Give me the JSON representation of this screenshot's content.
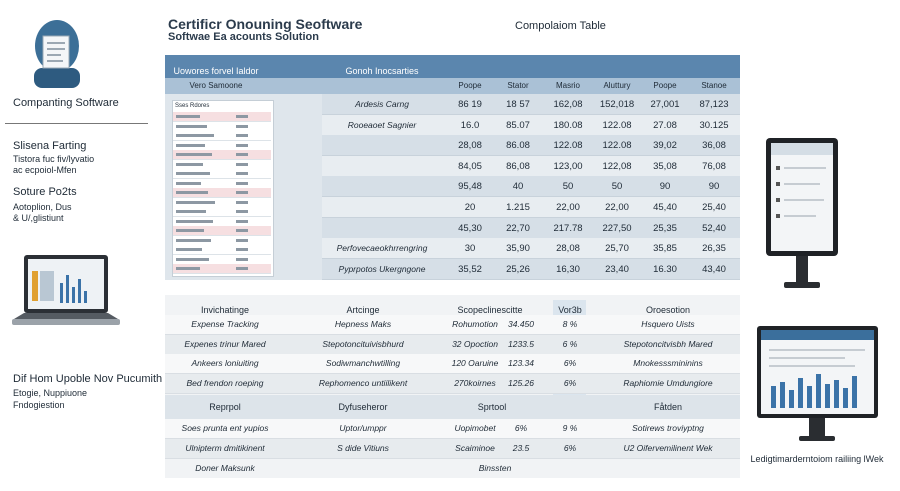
{
  "header": {
    "title": "Certificr Onouning Seoftware",
    "subtitle": "Softwae Ea acounts Solution",
    "table_title": "Compolaiom Table"
  },
  "sidebar": {
    "app_name": "Companting Software",
    "section1": {
      "title": "Slisena Farting",
      "lines": [
        "Tistora fuc fiv/lyvatio",
        "ac ecpoiol-Mfen"
      ]
    },
    "section2": {
      "title": "Soture Po2ts",
      "lines": [
        "Aotoplion, Dus",
        "& U/,glistiunt"
      ]
    },
    "section3": {
      "title": "Dif Hom Upoble Nov Pucumith",
      "lines": [
        "Etogie, Nuppiuone",
        "Fndogiestion"
      ]
    }
  },
  "top_table": {
    "bar_left": "Uowores forvel Ialdor",
    "bar_right": "Gonoh Inocsarties",
    "sub_left": "Vero Samoone",
    "mini_header": "Sses Rdores",
    "columns": [
      "Poope",
      "Stator",
      "Masrio",
      "Aluttury",
      "Poope",
      "Stanoe"
    ],
    "rows": [
      {
        "label": "Ardesis Carng",
        "cells": [
          "86 19",
          "18 57",
          "162,08",
          "152,018",
          "27,001",
          "87,123"
        ]
      },
      {
        "label": "Rooeaoet Sagnier",
        "cells": [
          "16.0",
          "85.07",
          "180.08",
          "122.08",
          "27.08",
          "30.125"
        ]
      },
      {
        "cells": [
          "28,08",
          "86.08",
          "122.08",
          "122.08",
          "39,02",
          "36,08"
        ]
      },
      {
        "cells": [
          "84,05",
          "86,08",
          "123,00",
          "122,08",
          "35,08",
          "76,08"
        ]
      },
      {
        "cells": [
          "95,48",
          "40",
          "50",
          "50",
          "90",
          "90"
        ]
      },
      {
        "cells": [
          "20",
          "1.215",
          "22,00",
          "22,00",
          "45,40",
          "25,40"
        ]
      },
      {
        "cells": [
          "45,30",
          "22,70",
          "217.78",
          "227,50",
          "25,35",
          "52,40"
        ]
      },
      {
        "label": "Perfovecaeokhrrengring",
        "cells": [
          "30",
          "35,90",
          "28,08",
          "25,70",
          "35,85",
          "26,35"
        ]
      },
      {
        "label": "Pyprpotos Ukergngone",
        "cells": [
          "35,52",
          "25,26",
          "16,30",
          "23,40",
          "16.30",
          "43,40"
        ]
      }
    ]
  },
  "bottom_table": {
    "header": [
      "Invichatinge",
      "Artcinge",
      "Scopeclinescitte",
      "Vor3b",
      "Oroesotion"
    ],
    "rows": [
      [
        "Expense Tracking",
        "Hepness Maks",
        "Rohumotion",
        "34.450",
        "8 %",
        "Hsquero Uists"
      ],
      [
        "Expenes trinur Mared",
        "Stepotoncituivisbhurd",
        "32 Opoction",
        "1233.5",
        "6 %",
        "Stepotoncitvisbh Mared"
      ],
      [
        "Ankeers loniuiting",
        "Sodiwmanchwtilling",
        "120 Oaruine",
        "123.34",
        "6%",
        "Mnokesssmininins"
      ],
      [
        "Bed frendon roeping",
        "Rephomenco untiilikent",
        "270koirnes",
        "125.26",
        "6%",
        "Raphiomie Umdungiore"
      ]
    ],
    "section_header": [
      "Reprpol",
      "Dyfuseheror",
      "Sprtool",
      "Fåtden"
    ],
    "section_rows": [
      [
        "Soes prunta ent yupios",
        "Uptor/umppr",
        "Uopimobet",
        "6%",
        "9 %",
        "Sotirews troviyptng"
      ],
      [
        "Ulnipterm dmitikinent",
        "S dide Vitiuns",
        "Scaiminoe",
        "23.5",
        "6%",
        "U2 Oifervemilinent Wek"
      ]
    ],
    "footer": [
      "Doner Maksunk",
      "Binssten"
    ]
  },
  "right_caption": "Ledigtimarderntoiom railiing lWek"
}
